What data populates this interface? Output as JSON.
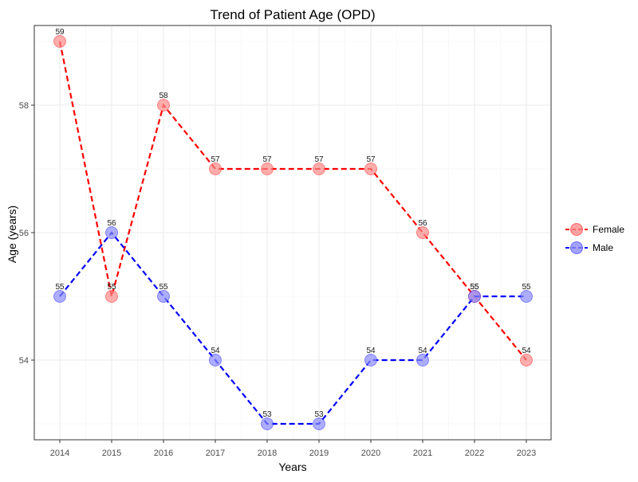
{
  "chart_data": {
    "type": "line",
    "title": "Trend of Patient Age (OPD)",
    "xlabel": "Years",
    "ylabel": "Age (years)",
    "categories": [
      "2014",
      "2015",
      "2016",
      "2017",
      "2018",
      "2019",
      "2020",
      "2021",
      "2022",
      "2023"
    ],
    "series": [
      {
        "name": "Female",
        "values": [
          59,
          55,
          58,
          57,
          57,
          57,
          57,
          56,
          55,
          54
        ],
        "color": "#ff0000",
        "point_fill": "#ff8a8a"
      },
      {
        "name": "Male",
        "values": [
          55,
          56,
          55,
          54,
          53,
          53,
          54,
          54,
          55,
          55
        ],
        "color": "#0000ff",
        "point_fill": "#8c8cff"
      }
    ],
    "ylim": [
      52.75,
      59.25
    ],
    "yticks": [
      54,
      56,
      58
    ],
    "grid": true,
    "legend_position": "right",
    "line_style": "dashed"
  }
}
